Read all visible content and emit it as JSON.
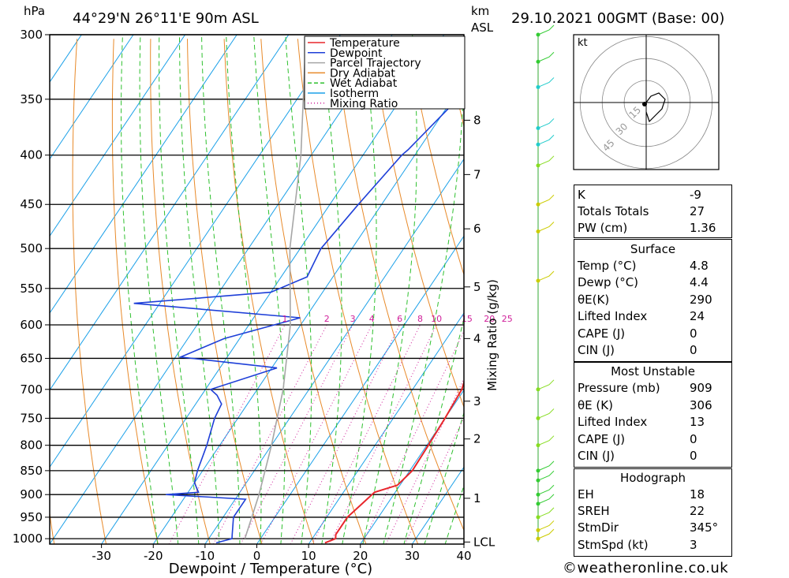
{
  "header": {
    "pressure_unit": "hPa",
    "location": "44°29'N  26°11'E  90m  ASL",
    "height_unit": "km",
    "height_ref": "ASL",
    "datetime": "29.10.2021  00GMT  (Base: 00)"
  },
  "chart_data": {
    "type": "line",
    "title": "Skew-T log-P sounding",
    "xlabel": "Dewpoint / Temperature (°C)",
    "ylabel": "hPa",
    "secondary_ylabel": "Mixing Ratio (g/kg)",
    "x_ticks": [
      -30,
      -20,
      -10,
      0,
      10,
      20,
      30,
      40
    ],
    "xlim": [
      -40,
      40
    ],
    "pressure_levels": [
      300,
      350,
      400,
      450,
      500,
      550,
      600,
      650,
      700,
      750,
      800,
      850,
      900,
      950,
      1000
    ],
    "ylim": [
      1013,
      300
    ],
    "skew_slope": 0.0112,
    "km_ticks": [
      {
        "label": "8",
        "p": 368
      },
      {
        "label": "7",
        "p": 419
      },
      {
        "label": "6",
        "p": 477
      },
      {
        "label": "5",
        "p": 548
      },
      {
        "label": "4",
        "p": 620
      },
      {
        "label": "3",
        "p": 720
      },
      {
        "label": "2",
        "p": 788
      },
      {
        "label": "1",
        "p": 908
      },
      {
        "label": "LCL",
        "p": 1008
      }
    ],
    "mixing_ratio_labels": [
      "1",
      "2",
      "3",
      "4",
      "6",
      "8",
      "10",
      "15",
      "20",
      "25"
    ],
    "mixing_ratio_values": [
      1,
      2,
      3,
      4,
      6,
      8,
      10,
      15,
      20,
      25
    ],
    "legend": [
      {
        "name": "Temperature",
        "color": "#e8262b"
      },
      {
        "name": "Dewpoint",
        "color": "#1e3fd8"
      },
      {
        "name": "Parcel Trajectory",
        "color": "#a6a6a6"
      },
      {
        "name": "Dry Adiabat",
        "color": "#e88a2a"
      },
      {
        "name": "Wet Adiabat",
        "color": "#2ec02e"
      },
      {
        "name": "Isotherm",
        "color": "#1ba0e8"
      },
      {
        "name": "Mixing Ratio",
        "color": "#d0209a"
      }
    ],
    "series": [
      {
        "name": "Temperature",
        "points": [
          [
            300,
            -4.5
          ],
          [
            350,
            -2
          ],
          [
            380,
            0.5
          ],
          [
            400,
            1.5
          ],
          [
            450,
            4.5
          ],
          [
            500,
            7.5
          ],
          [
            550,
            11.5
          ],
          [
            570,
            13
          ],
          [
            585,
            13
          ],
          [
            600,
            14.5
          ],
          [
            650,
            20
          ],
          [
            665,
            18
          ],
          [
            700,
            19.5
          ],
          [
            750,
            20
          ],
          [
            800,
            20.3
          ],
          [
            850,
            20.5
          ],
          [
            880,
            19.5
          ],
          [
            895,
            16
          ],
          [
            950,
            14
          ],
          [
            990,
            14
          ],
          [
            1000,
            14.5
          ],
          [
            1010,
            13
          ]
        ]
      },
      {
        "name": "Dewpoint",
        "points": [
          [
            300,
            -17
          ],
          [
            350,
            -19
          ],
          [
            395,
            -22
          ],
          [
            400,
            -22.5
          ],
          [
            450,
            -24.5
          ],
          [
            500,
            -26
          ],
          [
            535,
            -25
          ],
          [
            555,
            -30
          ],
          [
            570,
            -55
          ],
          [
            590,
            -21
          ],
          [
            620,
            -33
          ],
          [
            648,
            -39
          ],
          [
            665,
            -19
          ],
          [
            700,
            -29
          ],
          [
            710,
            -27
          ],
          [
            725,
            -25
          ],
          [
            750,
            -24.5
          ],
          [
            800,
            -22.5
          ],
          [
            850,
            -21
          ],
          [
            875,
            -20
          ],
          [
            895,
            -18
          ],
          [
            900,
            -24
          ],
          [
            910,
            -8
          ],
          [
            950,
            -8
          ],
          [
            990,
            -6
          ],
          [
            1000,
            -5.5
          ],
          [
            1010,
            -8
          ]
        ]
      },
      {
        "name": "Parcel Trajectory",
        "points": [
          [
            310,
            -55
          ],
          [
            400,
            -42
          ],
          [
            500,
            -32
          ],
          [
            600,
            -22
          ],
          [
            700,
            -15
          ],
          [
            800,
            -10
          ],
          [
            900,
            -6
          ],
          [
            1000,
            -3
          ]
        ]
      }
    ],
    "wind_barbs": [
      {
        "p": 300,
        "color": "#33cc33"
      },
      {
        "p": 320,
        "color": "#33cc33"
      },
      {
        "p": 340,
        "color": "#22cccc"
      },
      {
        "p": 375,
        "color": "#22cccc"
      },
      {
        "p": 390,
        "color": "#22cccc"
      },
      {
        "p": 410,
        "color": "#88dd22"
      },
      {
        "p": 450,
        "color": "#cccc00"
      },
      {
        "p": 480,
        "color": "#cccc00"
      },
      {
        "p": 540,
        "color": "#cccc00"
      },
      {
        "p": 700,
        "color": "#88dd22"
      },
      {
        "p": 750,
        "color": "#88dd22"
      },
      {
        "p": 800,
        "color": "#88dd22"
      },
      {
        "p": 850,
        "color": "#33cc33"
      },
      {
        "p": 870,
        "color": "#33cc33"
      },
      {
        "p": 900,
        "color": "#33cc33"
      },
      {
        "p": 920,
        "color": "#33cc33"
      },
      {
        "p": 950,
        "color": "#88dd22"
      },
      {
        "p": 980,
        "color": "#cccc00"
      },
      {
        "p": 1000,
        "color": "#cccc00"
      }
    ],
    "hodograph": {
      "unit": "kt",
      "rings": [
        "15",
        "30",
        "45"
      ],
      "trace": [
        [
          0,
          0
        ],
        [
          1.5,
          2
        ],
        [
          4,
          3
        ],
        [
          6,
          1
        ],
        [
          5,
          -2
        ],
        [
          3,
          -4
        ],
        [
          1,
          -6
        ],
        [
          0,
          -3
        ]
      ]
    }
  },
  "indices": [
    {
      "label": "K",
      "value": "-9"
    },
    {
      "label": "Totals Totals",
      "value": "27"
    },
    {
      "label": "PW (cm)",
      "value": "1.36"
    }
  ],
  "surface": {
    "title": "Surface",
    "rows": [
      {
        "label": "Temp (°C)",
        "value": "4.8"
      },
      {
        "label": "Dewp (°C)",
        "value": "4.4"
      },
      {
        "label": "θE(K)",
        "value": "290"
      },
      {
        "label": "Lifted Index",
        "value": "24"
      },
      {
        "label": "CAPE (J)",
        "value": "0"
      },
      {
        "label": "CIN (J)",
        "value": "0"
      }
    ]
  },
  "most_unstable": {
    "title": "Most Unstable",
    "rows": [
      {
        "label": "Pressure (mb)",
        "value": "909"
      },
      {
        "label": "θE (K)",
        "value": "306"
      },
      {
        "label": "Lifted Index",
        "value": "13"
      },
      {
        "label": "CAPE (J)",
        "value": "0"
      },
      {
        "label": "CIN (J)",
        "value": "0"
      }
    ]
  },
  "hodograph_table": {
    "title": "Hodograph",
    "rows": [
      {
        "label": "EH",
        "value": "18"
      },
      {
        "label": "SREH",
        "value": "22"
      },
      {
        "label": "StmDir",
        "value": "345°"
      },
      {
        "label": "StmSpd (kt)",
        "value": "3"
      }
    ]
  },
  "footer": {
    "copyright": "©weatheronline.co.uk"
  }
}
